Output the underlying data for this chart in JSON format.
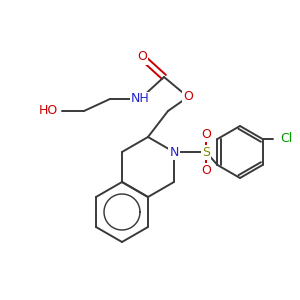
{
  "bg_color": "#ffffff",
  "bond_color": "#3a3a3a",
  "atom_colors": {
    "O": "#cc0000",
    "N": "#2222cc",
    "S": "#888800",
    "Cl": "#009900",
    "C": "#3a3a3a"
  },
  "figsize": [
    3.0,
    3.0
  ],
  "dpi": 100
}
